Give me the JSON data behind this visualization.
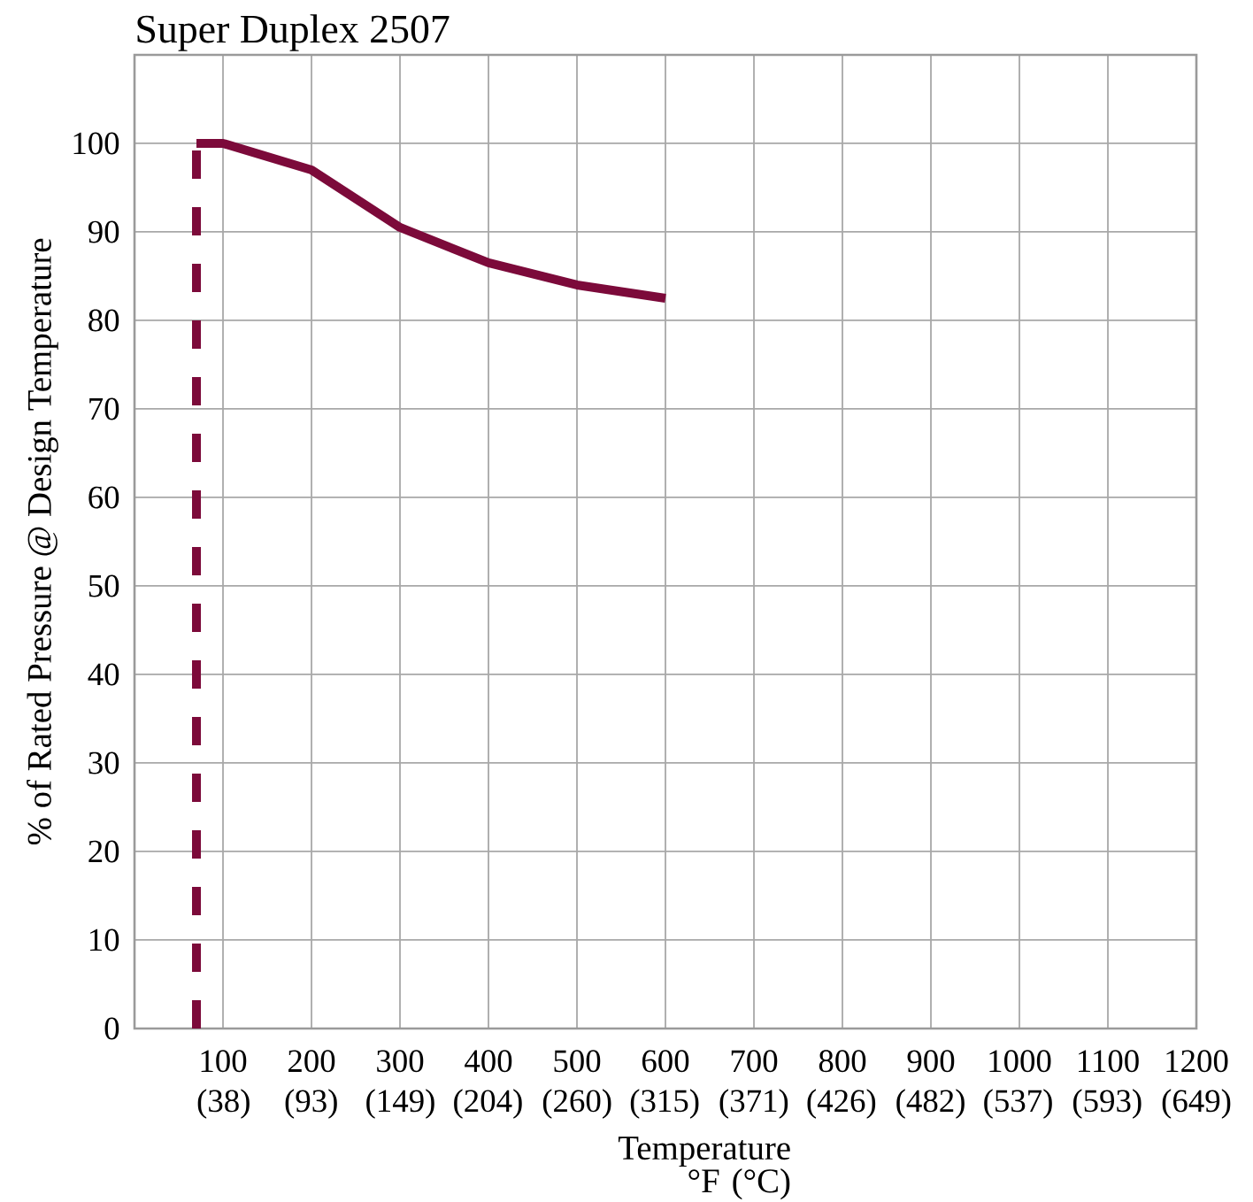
{
  "chart_data": {
    "type": "line",
    "title": "Super Duplex 2507",
    "xlabel": "Temperature °F (°C)",
    "ylabel": "% of Rated Pressure @ Design Temperature",
    "xlim": [
      0,
      1200
    ],
    "ylim": [
      0,
      110
    ],
    "xticks": [
      100,
      200,
      300,
      400,
      500,
      600,
      700,
      800,
      900,
      1000,
      1100,
      1200
    ],
    "x2lim": [
      -18,
      649
    ],
    "x2ticks": [
      {
        "value": 38,
        "label": "(38)"
      },
      {
        "value": 93,
        "label": "(93)"
      },
      {
        "value": 149,
        "label": "(149)"
      },
      {
        "value": 204,
        "label": "(204)"
      },
      {
        "value": 260,
        "label": "(260)"
      },
      {
        "value": 315,
        "label": "(315)"
      },
      {
        "value": 371,
        "label": "(371)"
      },
      {
        "value": 426,
        "label": "(426)"
      },
      {
        "value": 482,
        "label": "(482)"
      },
      {
        "value": 537,
        "label": "(537)"
      },
      {
        "value": 593,
        "label": "(593)"
      },
      {
        "value": 649,
        "label": "(649)"
      }
    ],
    "yticks": [
      0,
      10,
      20,
      30,
      40,
      50,
      60,
      70,
      80,
      90,
      100
    ],
    "grid": true,
    "marker": "none",
    "series": [
      {
        "color": "#7c0a3a",
        "line_style": "solid",
        "x": [
          70,
          100,
          200,
          300,
          400,
          500,
          600
        ],
        "values": [
          100,
          100,
          97,
          90.5,
          86.5,
          84,
          82.5
        ]
      },
      {
        "color": "#7c0a3a",
        "line_style": "dashed",
        "x": [
          70,
          70
        ],
        "values": [
          0,
          100
        ]
      }
    ]
  }
}
